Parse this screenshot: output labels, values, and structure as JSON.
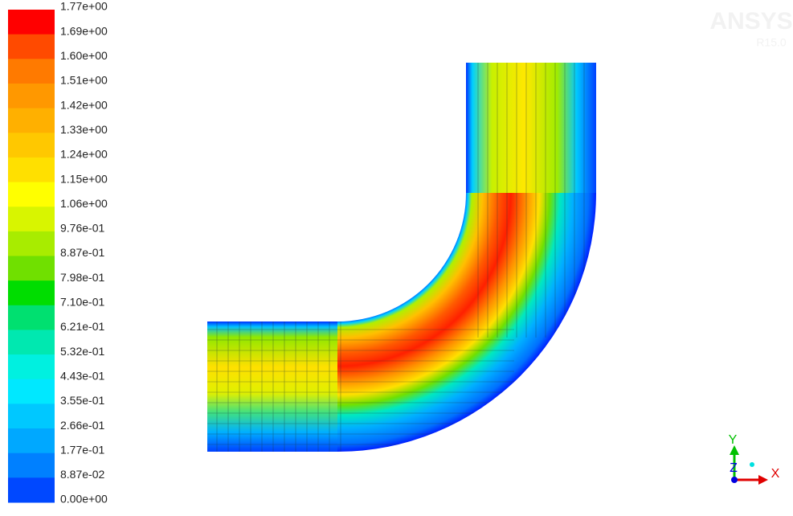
{
  "legend": {
    "labels": [
      "1.77e+00",
      "1.69e+00",
      "1.60e+00",
      "1.51e+00",
      "1.42e+00",
      "1.33e+00",
      "1.24e+00",
      "1.15e+00",
      "1.06e+00",
      "9.76e-01",
      "8.87e-01",
      "7.98e-01",
      "7.10e-01",
      "6.21e-01",
      "5.32e-01",
      "4.43e-01",
      "3.55e-01",
      "2.66e-01",
      "1.77e-01",
      "8.87e-02",
      "0.00e+00"
    ],
    "colors": [
      "#ff0000",
      "#ff4a00",
      "#ff7a00",
      "#ff9800",
      "#ffb000",
      "#ffc800",
      "#ffe000",
      "#ffff00",
      "#d8f500",
      "#a8ec00",
      "#70e000",
      "#00dd00",
      "#00e070",
      "#00e8b0",
      "#00f0e0",
      "#00e8ff",
      "#00c8ff",
      "#00a8ff",
      "#0080ff",
      "#0048ff"
    ]
  },
  "logo": {
    "name": "ANSYS",
    "version": "R15.0"
  },
  "triad": {
    "y": "Y",
    "z": "Z",
    "x": "X"
  }
}
